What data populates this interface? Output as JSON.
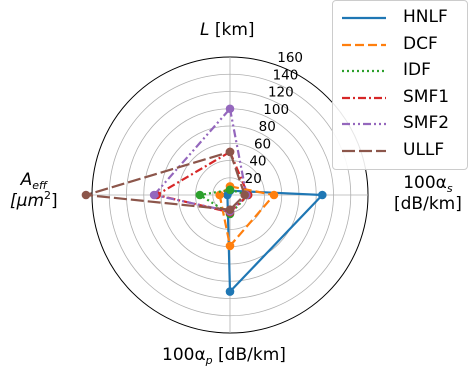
{
  "chart_data": {
    "type": "radar",
    "axes": [
      {
        "key": "L",
        "label_parts": [
          "L",
          " [km]"
        ]
      },
      {
        "key": "alpha_s",
        "label_parts": [
          "100α",
          "s",
          "[dB/km]"
        ]
      },
      {
        "key": "alpha_p",
        "label_parts": [
          "100α",
          "p",
          " [dB/km]"
        ]
      },
      {
        "key": "A_eff",
        "label_parts": [
          "A",
          "eff",
          "[μm",
          "2",
          "]"
        ]
      }
    ],
    "rlim": [
      0,
      160
    ],
    "rticks": [
      20,
      40,
      60,
      80,
      100,
      120,
      140,
      160
    ],
    "grid": true,
    "legend_position": "top-right",
    "series": [
      {
        "name": "HNLF",
        "color": "#1f77b4",
        "dash": "solid",
        "values": [
          5,
          107,
          112,
          3
        ]
      },
      {
        "name": "DCF",
        "color": "#ff7f0e",
        "dash": "dashed",
        "values": [
          10,
          51,
          59,
          12
        ]
      },
      {
        "name": "IDF",
        "color": "#2ca02c",
        "dash": "dotted",
        "values": [
          6,
          21,
          22,
          35
        ]
      },
      {
        "name": "SMF1",
        "color": "#d62728",
        "dash": "dashdot",
        "values": [
          50,
          21,
          20,
          85
        ]
      },
      {
        "name": "SMF2",
        "color": "#9467bd",
        "dash": "dashdotdot",
        "values": [
          100,
          19,
          19,
          88
        ]
      },
      {
        "name": "ULLF",
        "color": "#8c564b",
        "dash": "longdash",
        "values": [
          50,
          17,
          17,
          167
        ]
      }
    ]
  }
}
